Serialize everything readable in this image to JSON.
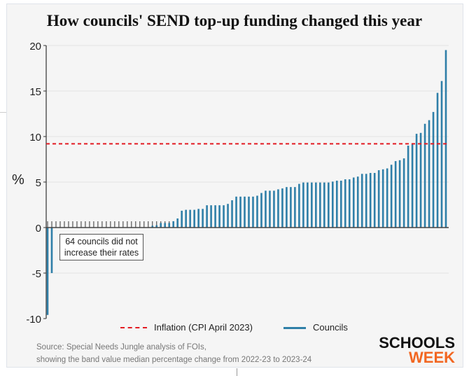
{
  "chart_data": {
    "type": "bar",
    "title": "How councils' SEND top-up funding changed this year",
    "ylabel": "%",
    "xlabel": "",
    "ylim": [
      -10,
      20
    ],
    "yticks": [
      "20",
      "15",
      "10",
      "5",
      "0",
      "-5",
      "-10"
    ],
    "ytick_values": [
      20,
      15,
      10,
      5,
      0,
      -5,
      -10
    ],
    "grid": true,
    "legend_position": "bottom",
    "reference_line": {
      "name": "Inflation (CPI April 2023)",
      "value": 9.2,
      "color": "#e31b23",
      "style": "dashed"
    },
    "series": [
      {
        "name": "Councils",
        "color": "#2f7fa8",
        "values": [
          -9.6,
          -5.0,
          0,
          0,
          0,
          0,
          0,
          0,
          0,
          0,
          0,
          0,
          0,
          0,
          0,
          0,
          0,
          0,
          0,
          0,
          0,
          0,
          0,
          0,
          0,
          0.2,
          0.25,
          0.5,
          0.5,
          0.5,
          0.7,
          1.0,
          1.85,
          1.95,
          1.95,
          1.95,
          2.05,
          2.05,
          2.45,
          2.45,
          2.45,
          2.45,
          2.45,
          2.6,
          3.0,
          3.4,
          3.4,
          3.4,
          3.4,
          3.4,
          3.5,
          3.8,
          4.05,
          4.05,
          4.05,
          4.2,
          4.3,
          4.45,
          4.45,
          4.45,
          4.8,
          4.95,
          4.95,
          4.95,
          4.95,
          4.95,
          4.95,
          4.95,
          5.05,
          5.15,
          5.15,
          5.3,
          5.3,
          5.5,
          5.6,
          5.9,
          5.9,
          6.0,
          6.0,
          6.3,
          6.4,
          6.5,
          6.9,
          7.3,
          7.4,
          7.6,
          9.0,
          9.2,
          10.3,
          10.4,
          11.4,
          11.8,
          12.7,
          14.8,
          16.1,
          19.5
        ]
      }
    ],
    "annotation": "64 councils did not increase their rates"
  },
  "legend": {
    "inflation_label": "Inflation (CPI April 2023)",
    "councils_label": "Councils"
  },
  "source": {
    "line1": "Source: Special Needs Jungle analysis of FOIs,",
    "line2": "showing the band value median percentage change from 2022-23 to 2023-24"
  },
  "logo": {
    "line1": "SCHOOLS",
    "line2": "WEEK"
  }
}
